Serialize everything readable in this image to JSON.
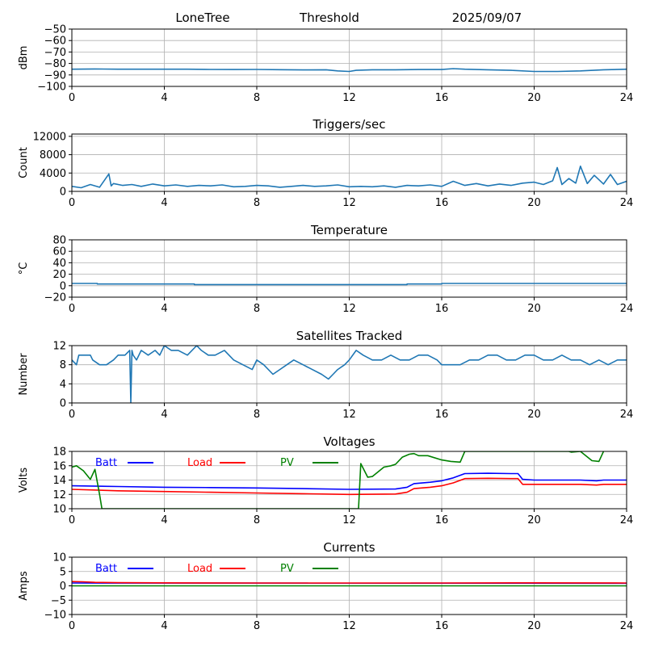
{
  "header": {
    "station": "LoneTree",
    "mode": "Threshold",
    "date": "2025/09/07"
  },
  "colors": {
    "series": "#1f77b4",
    "grid": "#b0b0b0",
    "batt": "#0000ff",
    "load": "#ff0000",
    "pv": "#008000"
  },
  "chart_data": [
    {
      "type": "line",
      "title": "",
      "ylabel": "dBm",
      "xlim": [
        0,
        24
      ],
      "ylim": [
        -100,
        -50
      ],
      "xticks": [
        0,
        4,
        8,
        12,
        16,
        20,
        24
      ],
      "yticks": [
        -100,
        -90,
        -80,
        -70,
        -60,
        -50
      ],
      "ytick_labels": [
        "−100",
        "−90",
        "−80",
        "−70",
        "−60",
        "−50"
      ],
      "grid": true,
      "series": [
        {
          "x": [
            0,
            1,
            2,
            3,
            4,
            5,
            6,
            7,
            8,
            9,
            10,
            11,
            11.5,
            12,
            12.3,
            13,
            14,
            15,
            16,
            16.5,
            17,
            18,
            19,
            20,
            21,
            22,
            23,
            24
          ],
          "y": [
            -85,
            -84.8,
            -85,
            -85,
            -85,
            -85,
            -85.2,
            -85.3,
            -85.2,
            -85.4,
            -85.6,
            -85.5,
            -86.5,
            -87,
            -86,
            -85.5,
            -85.5,
            -85.3,
            -85.3,
            -84.5,
            -85,
            -85.5,
            -86,
            -87,
            -87,
            -86.5,
            -85.5,
            -85
          ]
        }
      ]
    },
    {
      "type": "line",
      "title": "Triggers/sec",
      "ylabel": "Count",
      "xlim": [
        0,
        24
      ],
      "ylim": [
        0,
        12500
      ],
      "xticks": [
        0,
        4,
        8,
        12,
        16,
        20,
        24
      ],
      "yticks": [
        0,
        4000,
        8000,
        12000
      ],
      "ytick_labels": [
        "0",
        "4000",
        "8000",
        "12000"
      ],
      "grid": true,
      "series": [
        {
          "x": [
            0,
            0.4,
            0.8,
            1.2,
            1.6,
            1.7,
            1.8,
            2.2,
            2.6,
            3,
            3.5,
            4,
            4.5,
            5,
            5.5,
            6,
            6.5,
            7,
            7.5,
            8,
            8.5,
            9,
            9.5,
            10,
            10.5,
            11,
            11.5,
            12,
            12.5,
            13,
            13.5,
            14,
            14.5,
            15,
            15.5,
            16,
            16.5,
            17,
            17.5,
            18,
            18.5,
            19,
            19.5,
            20,
            20.4,
            20.8,
            21,
            21.2,
            21.5,
            21.8,
            22,
            22.3,
            22.6,
            23,
            23.3,
            23.6,
            24
          ],
          "y": [
            1100,
            800,
            1500,
            900,
            3800,
            1200,
            1700,
            1300,
            1500,
            1100,
            1600,
            1200,
            1400,
            1100,
            1300,
            1200,
            1400,
            1000,
            1100,
            1300,
            1200,
            900,
            1100,
            1300,
            1100,
            1200,
            1400,
            1000,
            1100,
            1000,
            1200,
            900,
            1300,
            1200,
            1400,
            1100,
            2200,
            1300,
            1700,
            1200,
            1600,
            1300,
            1800,
            2000,
            1500,
            2300,
            5200,
            1500,
            2800,
            1800,
            5500,
            1700,
            3500,
            1600,
            3700,
            1500,
            2200
          ]
        }
      ]
    },
    {
      "type": "line",
      "title": "Temperature",
      "ylabel": "°C",
      "xlim": [
        0,
        24
      ],
      "ylim": [
        -20,
        80
      ],
      "xticks": [
        0,
        4,
        8,
        12,
        16,
        20,
        24
      ],
      "yticks": [
        -20,
        0,
        20,
        40,
        60,
        80
      ],
      "ytick_labels": [
        "−20",
        "0",
        "20",
        "40",
        "60",
        "80"
      ],
      "grid": true,
      "series": [
        {
          "x": [
            0,
            1.1,
            1.1,
            5.3,
            5.3,
            14.5,
            14.5,
            16,
            16,
            24
          ],
          "y": [
            4,
            4,
            3,
            3,
            2,
            2,
            3,
            3,
            4,
            4
          ]
        }
      ]
    },
    {
      "type": "line",
      "title": "Satellites Tracked",
      "ylabel": "Number",
      "xlim": [
        0,
        24
      ],
      "ylim": [
        0,
        12
      ],
      "xticks": [
        0,
        4,
        8,
        12,
        16,
        20,
        24
      ],
      "yticks": [
        0,
        4,
        8,
        12
      ],
      "ytick_labels": [
        "0",
        "4",
        "8",
        "12"
      ],
      "grid": true,
      "series": [
        {
          "x": [
            0,
            0.2,
            0.3,
            0.8,
            0.9,
            1.2,
            1.5,
            1.8,
            2,
            2.3,
            2.5,
            2.55,
            2.6,
            2.65,
            2.8,
            3,
            3.3,
            3.6,
            3.8,
            4,
            4.3,
            4.6,
            5,
            5.4,
            5.6,
            5.9,
            6.2,
            6.6,
            7,
            7.4,
            7.8,
            8,
            8.3,
            8.7,
            9,
            9.3,
            9.6,
            10,
            10.4,
            10.8,
            11.1,
            11.3,
            11.5,
            11.8,
            12,
            12.3,
            12.6,
            13,
            13.4,
            13.8,
            14.2,
            14.6,
            15,
            15.4,
            15.8,
            16,
            16.4,
            16.8,
            17.2,
            17.6,
            18,
            18.4,
            18.8,
            19.2,
            19.6,
            20,
            20.4,
            20.8,
            21.2,
            21.6,
            22,
            22.4,
            22.8,
            23.2,
            23.6,
            24
          ],
          "y": [
            9,
            8,
            10,
            10,
            9,
            8,
            8,
            9,
            10,
            10,
            11,
            0,
            11,
            10,
            9,
            11,
            10,
            11,
            10,
            12,
            11,
            11,
            10,
            12,
            11,
            10,
            10,
            11,
            9,
            8,
            7,
            9,
            8,
            6,
            7,
            8,
            9,
            8,
            7,
            6,
            5,
            6,
            7,
            8,
            9,
            11,
            10,
            9,
            9,
            10,
            9,
            9,
            10,
            10,
            9,
            8,
            8,
            8,
            9,
            9,
            10,
            10,
            9,
            9,
            10,
            10,
            9,
            9,
            10,
            9,
            9,
            8,
            9,
            8,
            9,
            9
          ]
        }
      ]
    },
    {
      "type": "line",
      "title": "Voltages",
      "ylabel": "Volts",
      "xlim": [
        0,
        24
      ],
      "ylim": [
        10,
        18
      ],
      "xticks": [
        0,
        4,
        8,
        12,
        16,
        20,
        24
      ],
      "yticks": [
        10,
        12,
        14,
        16,
        18
      ],
      "ytick_labels": [
        "10",
        "12",
        "14",
        "16",
        "18"
      ],
      "grid": true,
      "series": [
        {
          "name": "Batt",
          "x": [
            0,
            2,
            4,
            6,
            8,
            10,
            12,
            14,
            14.5,
            14.8,
            15.5,
            16,
            16.5,
            17,
            18,
            19,
            19.3,
            19.5,
            20,
            22,
            22.7,
            23,
            24
          ],
          "y": [
            13.2,
            13.1,
            13.0,
            12.95,
            12.9,
            12.8,
            12.7,
            12.75,
            13,
            13.5,
            13.7,
            13.9,
            14.3,
            14.9,
            14.95,
            14.9,
            14.9,
            14.1,
            14.0,
            14.0,
            13.9,
            14.0,
            14.0
          ]
        },
        {
          "name": "Load",
          "x": [
            0,
            2,
            4,
            6,
            8,
            10,
            12,
            14,
            14.5,
            14.8,
            15.5,
            16,
            16.5,
            17,
            18,
            19,
            19.3,
            19.5,
            20,
            22,
            22.7,
            23,
            24
          ],
          "y": [
            12.7,
            12.5,
            12.4,
            12.3,
            12.2,
            12.1,
            12.0,
            12.05,
            12.3,
            12.8,
            13.0,
            13.2,
            13.6,
            14.2,
            14.25,
            14.2,
            14.2,
            13.4,
            13.4,
            13.4,
            13.3,
            13.4,
            13.4
          ]
        },
        {
          "name": "PV",
          "x": [
            0,
            0.2,
            0.5,
            0.8,
            1.0,
            1.2,
            1.3,
            12.4,
            12.5,
            12.8,
            13,
            13.5,
            13.8,
            14,
            14.3,
            14.6,
            14.8,
            15,
            15.4,
            16,
            16.4,
            16.8,
            17,
            21.5,
            21.6,
            22,
            22.5,
            22.8,
            23.0
          ],
          "y": [
            15.8,
            16,
            15.3,
            14.1,
            15.5,
            12,
            10,
            10,
            16.3,
            14.4,
            14.5,
            15.8,
            16,
            16.2,
            17.2,
            17.6,
            17.7,
            17.4,
            17.4,
            16.8,
            16.6,
            16.5,
            18,
            18,
            17.9,
            18,
            16.7,
            16.6,
            18
          ]
        }
      ]
    },
    {
      "type": "line",
      "title": "Currents",
      "ylabel": "Amps",
      "xlim": [
        0,
        24
      ],
      "ylim": [
        -10,
        10
      ],
      "xticks": [
        0,
        4,
        8,
        12,
        16,
        20,
        24
      ],
      "yticks": [
        -10,
        -5,
        0,
        5,
        10
      ],
      "ytick_labels": [
        "−10",
        "−5",
        "0",
        "5",
        "10"
      ],
      "grid": true,
      "series": [
        {
          "name": "Batt",
          "x": [
            0,
            24
          ],
          "y": [
            1.0,
            0.9
          ]
        },
        {
          "name": "Load",
          "x": [
            0,
            0.5,
            1,
            2,
            4,
            8,
            12,
            16,
            20,
            24
          ],
          "y": [
            1.5,
            1.4,
            1.2,
            1.1,
            1.05,
            1.0,
            1.0,
            1.0,
            1.05,
            1.0
          ]
        },
        {
          "name": "PV",
          "x": [
            0,
            24
          ],
          "y": [
            0.0,
            0.0
          ]
        }
      ]
    }
  ]
}
